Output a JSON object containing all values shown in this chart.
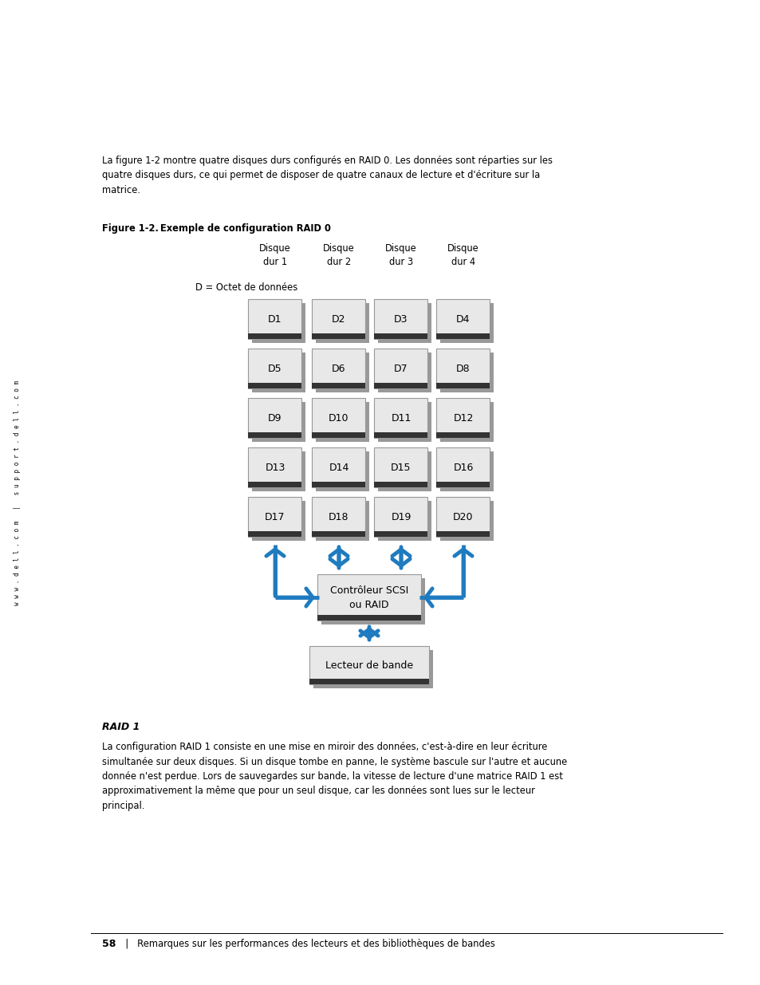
{
  "bg_color": "#ffffff",
  "sidebar_text": "w w w . d e l l . c o m   |   s u p p o r t . d e l l . c o m",
  "intro_text": "La figure 1-2 montre quatre disques durs configurés en RAID 0. Les données sont réparties sur les\nquatre disques durs, ce qui permet de disposer de quatre canaux de lecture et d'écriture sur la\nmatrice.",
  "figure_label": "Figure 1-2.",
  "figure_title": "Exemple de configuration RAID 0",
  "col_headers": [
    "Disque\ndur 1",
    "Disque\ndur 2",
    "Disque\ndur 3",
    "Disque\ndur 4"
  ],
  "row_label": "D = Octet de données",
  "disk_labels": [
    [
      "D1",
      "D2",
      "D3",
      "D4"
    ],
    [
      "D5",
      "D6",
      "D7",
      "D8"
    ],
    [
      "D9",
      "D10",
      "D11",
      "D12"
    ],
    [
      "D13",
      "D14",
      "D15",
      "D16"
    ],
    [
      "D17",
      "D18",
      "D19",
      "D20"
    ]
  ],
  "controller_text": "Contrôleur SCSI\nou RAID",
  "tape_text": "Lecteur de bande",
  "raid1_heading": "RAID 1",
  "raid1_body": "La configuration RAID 1 consiste en une mise en miroir des données, c'est-à-dire en leur écriture\nsimultanée sur deux disques. Si un disque tombe en panne, le système bascule sur l'autre et aucune\ndonnée n'est perdue. Lors de sauvegardes sur bande, la vitesse de lecture d'une matrice RAID 1 est\napproximativement la même que pour un seul disque, car les données sont lues sur le lecteur\nprincipal.",
  "footer_num": "58",
  "footer_text": "  |   Remarques sur les performances des lecteurs et des bibliothèques de bandes",
  "arrow_color": "#1f7bbf",
  "box_face_color": "#e8e8e8",
  "box_edge_color": "#999999",
  "box_shadow_color": "#999999",
  "dark_bar_color": "#333333"
}
